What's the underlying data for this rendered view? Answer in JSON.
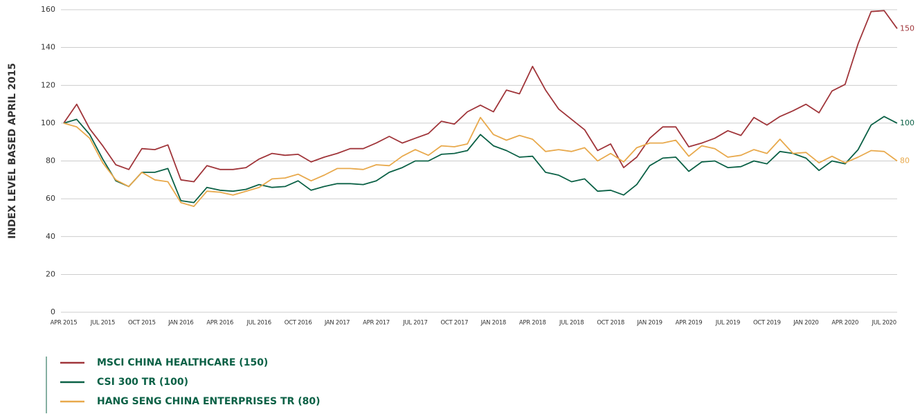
{
  "chart_data": {
    "type": "line",
    "y_label": "INDEX LEVEL BASED APRIL 2015",
    "categories": [
      "APR 2015",
      null,
      null,
      "JUL 2015",
      null,
      null,
      "OCT 2015",
      null,
      null,
      "JAN 2016",
      null,
      null,
      "APR 2016",
      null,
      null,
      "JUL 2016",
      null,
      null,
      "OCT 2016",
      null,
      null,
      "JAN 2017",
      null,
      null,
      "APR 2017",
      null,
      null,
      "JUL 2017",
      null,
      null,
      "OCT 2017",
      null,
      null,
      "JAN 2018",
      null,
      null,
      "APR 2018",
      null,
      null,
      "JUL 2018",
      null,
      null,
      "OCT 2018",
      null,
      null,
      "JAN 2019",
      null,
      null,
      "APR 2019",
      null,
      null,
      "JUL 2019",
      null,
      null,
      "OCT 2019",
      null,
      null,
      "JAN 2020",
      null,
      null,
      "APR 2020",
      null,
      null,
      "JUL 2020",
      null
    ],
    "series": [
      {
        "name": "MSCI CHINA HEALTHCARE (150)",
        "color": "#a0353a",
        "end_label": "150",
        "values": [
          100,
          110,
          97,
          88,
          78,
          75.5,
          86.5,
          86,
          88.5,
          70,
          69,
          77.5,
          75.5,
          75.5,
          76.5,
          81,
          84,
          83,
          83.5,
          79.5,
          82,
          84,
          86.5,
          86.5,
          89.5,
          93,
          89.5,
          92,
          94.5,
          101,
          99.5,
          106,
          109.5,
          106,
          117.5,
          115.5,
          130,
          117.5,
          107.5,
          102,
          96.5,
          85.5,
          89,
          76.5,
          82,
          92,
          98,
          98,
          87.5,
          89.5,
          92,
          96,
          93.5,
          103,
          99,
          103.5,
          106.5,
          110,
          105.5,
          117,
          120.5,
          142,
          159,
          159.5,
          150
        ]
      },
      {
        "name": "CSI 300 TR (100)",
        "color": "#0b6146",
        "end_label": "100",
        "values": [
          100,
          102,
          94,
          81,
          69.5,
          66.5,
          74,
          74,
          76,
          59,
          58,
          66,
          64.5,
          64,
          65,
          67.5,
          66,
          66.5,
          69.5,
          64.5,
          66.5,
          68,
          68,
          67.5,
          69.5,
          74,
          76.5,
          80,
          80,
          83.5,
          84,
          85.5,
          94,
          88,
          85.5,
          82,
          82.5,
          74,
          72.5,
          69,
          70.5,
          64,
          64.5,
          62,
          67.5,
          77.5,
          81.5,
          82,
          74.5,
          79.5,
          80,
          76.5,
          77,
          80,
          78.5,
          85,
          84,
          81.5,
          75,
          80,
          78.5,
          86,
          99,
          103.5,
          100
        ]
      },
      {
        "name": "HANG SENG CHINA ENTERPRISES TR (80)",
        "color": "#e8a94c",
        "end_label": "80",
        "values": [
          100,
          98,
          92,
          79,
          70,
          66.5,
          74,
          70,
          69,
          58,
          56,
          64,
          63.5,
          62,
          64,
          66,
          70.5,
          71,
          73,
          69.5,
          72.5,
          76,
          76,
          75.5,
          78,
          77.5,
          82.5,
          86,
          83,
          88,
          87.5,
          89,
          103,
          94,
          91,
          93.5,
          91.5,
          85,
          86,
          85,
          87,
          80,
          84,
          79.5,
          87,
          89.5,
          89.5,
          91,
          82.5,
          88,
          86.5,
          82,
          83,
          86,
          84,
          91.5,
          84,
          84.5,
          79,
          82.5,
          79,
          82,
          85.5,
          85,
          80
        ]
      }
    ],
    "ylim": [
      0,
      160
    ],
    "yticks": [
      0,
      20,
      40,
      60,
      80,
      100,
      120,
      140,
      160
    ],
    "grid": true
  }
}
